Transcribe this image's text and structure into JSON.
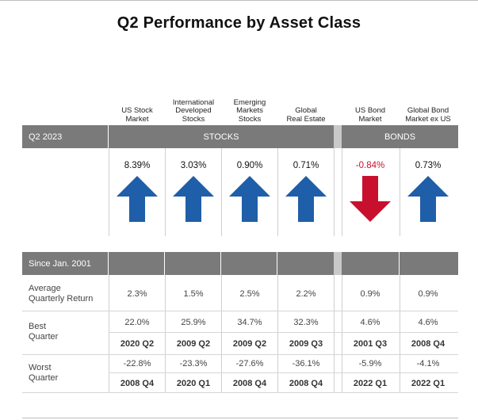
{
  "title": "Q2 Performance by Asset Class",
  "colors": {
    "header_bar": "#7a7a7a",
    "up_arrow": "#1f5ea8",
    "down_arrow": "#c8102e",
    "negative_text": "#c8102e"
  },
  "chart_data": {
    "type": "table",
    "period_label": "Q2 2023",
    "groups": [
      {
        "label": "STOCKS",
        "columns": [
          0,
          1,
          2,
          3
        ]
      },
      {
        "label": "BONDS",
        "columns": [
          4,
          5
        ]
      }
    ],
    "columns": [
      {
        "name": "US Stock Market",
        "q2_return": "8.39%",
        "direction": "up",
        "avg": "2.3%",
        "best": "22.0%",
        "best_q": "2020 Q2",
        "worst": "-22.8%",
        "worst_q": "2008 Q4"
      },
      {
        "name": "International Developed Stocks",
        "q2_return": "3.03%",
        "direction": "up",
        "avg": "1.5%",
        "best": "25.9%",
        "best_q": "2009 Q2",
        "worst": "-23.3%",
        "worst_q": "2020 Q1"
      },
      {
        "name": "Emerging Markets Stocks",
        "q2_return": "0.90%",
        "direction": "up",
        "avg": "2.5%",
        "best": "34.7%",
        "best_q": "2009 Q2",
        "worst": "-27.6%",
        "worst_q": "2008 Q4"
      },
      {
        "name": "Global Real Estate",
        "q2_return": "0.71%",
        "direction": "up",
        "avg": "2.2%",
        "best": "32.3%",
        "best_q": "2009 Q3",
        "worst": "-36.1%",
        "worst_q": "2008 Q4"
      },
      {
        "name": "US Bond Market",
        "q2_return": "-0.84%",
        "direction": "down",
        "avg": "0.9%",
        "best": "4.6%",
        "best_q": "2001 Q3",
        "worst": "-5.9%",
        "worst_q": "2022 Q1"
      },
      {
        "name": "Global Bond Market ex US",
        "q2_return": "0.73%",
        "direction": "up",
        "avg": "0.9%",
        "best": "4.6%",
        "best_q": "2008 Q4",
        "worst": "-4.1%",
        "worst_q": "2022 Q1"
      }
    ],
    "since_label": "Since Jan. 2001",
    "row_labels": {
      "avg": "Average Quarterly Return",
      "best": "Best Quarter",
      "worst": "Worst Quarter"
    }
  }
}
